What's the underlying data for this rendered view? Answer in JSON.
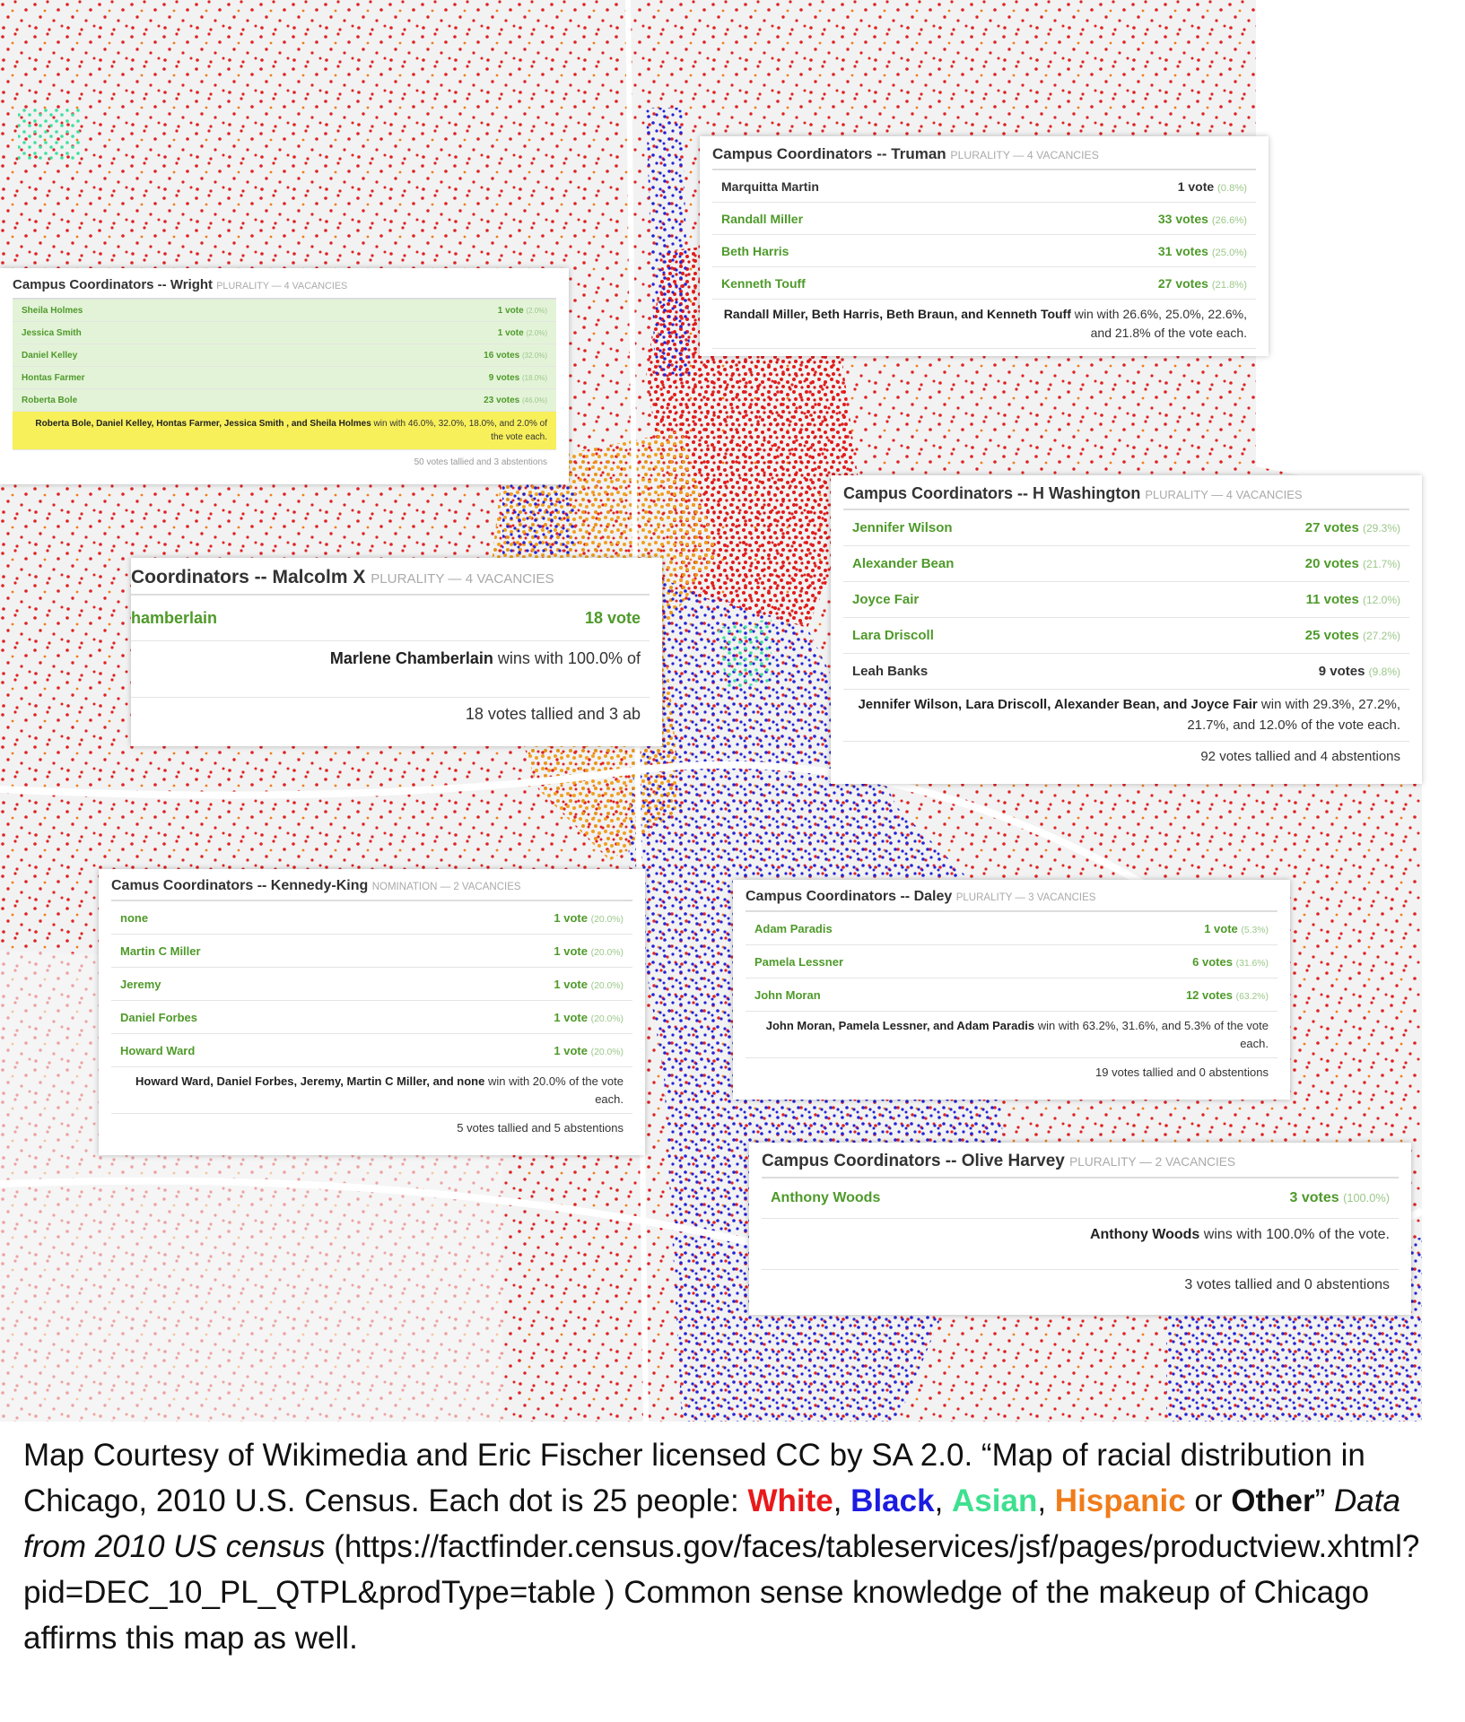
{
  "cards": [
    {
      "title": "Campus Coordinators -- Truman",
      "method": "PLURALITY — 4 VACANCIES",
      "rows": [
        {
          "name": "Marquitta Martin",
          "votes": "1 vote",
          "pct": "(0.8%)",
          "color": "#333333"
        },
        {
          "name": "Randall Miller",
          "votes": "33 votes",
          "pct": "(26.6%)",
          "color": "#4e9a2a"
        },
        {
          "name": "Beth Harris",
          "votes": "31 votes",
          "pct": "(25.0%)",
          "color": "#4e9a2a"
        },
        {
          "name": "Kenneth Touff",
          "votes": "27 votes",
          "pct": "(21.8%)",
          "color": "#4e9a2a"
        }
      ],
      "summary_names": "Randall Miller, Beth Harris, Beth Braun, and Kenneth Touff",
      "summary_text": " win with 26.6%, 25.0%, 22.6%, and 21.8% of the vote each."
    },
    {
      "title": "Campus Coordinators -- Wright",
      "method": "PLURALITY — 4 VACANCIES",
      "rows": [
        {
          "name": "Sheila Holmes",
          "votes": "1 vote",
          "pct": "(2.0%)",
          "color": "#4e9a2a"
        },
        {
          "name": "Jessica Smith",
          "votes": "1 vote",
          "pct": "(2.0%)",
          "color": "#4e9a2a"
        },
        {
          "name": "Daniel Kelley",
          "votes": "16 votes",
          "pct": "(32.0%)",
          "color": "#4e9a2a"
        },
        {
          "name": "Hontas Farmer",
          "votes": "9 votes",
          "pct": "(18.0%)",
          "color": "#4e9a2a"
        },
        {
          "name": "Roberta Bole",
          "votes": "23 votes",
          "pct": "(46.0%)",
          "color": "#4e9a2a"
        }
      ],
      "summary_names": "Roberta Bole, Daniel Kelley, Hontas Farmer, Jessica Smith , and Sheila Holmes",
      "summary_text": " win with 46.0%, 32.0%, 18.0%, and 2.0% of the vote each.",
      "tally": "50 votes tallied and 3 abstentions"
    },
    {
      "title": "Campus Coordinators -- H Washington",
      "method": "PLURALITY — 4 VACANCIES",
      "rows": [
        {
          "name": "Jennifer Wilson",
          "votes": "27 votes",
          "pct": "(29.3%)",
          "color": "#4e9a2a"
        },
        {
          "name": "Alexander Bean",
          "votes": "20 votes",
          "pct": "(21.7%)",
          "color": "#4e9a2a"
        },
        {
          "name": "Joyce Fair",
          "votes": "11 votes",
          "pct": "(12.0%)",
          "color": "#4e9a2a"
        },
        {
          "name": "Lara Driscoll",
          "votes": "25 votes",
          "pct": "(27.2%)",
          "color": "#4e9a2a"
        },
        {
          "name": "Leah Banks",
          "votes": "9 votes",
          "pct": "(9.8%)",
          "color": "#333333"
        }
      ],
      "summary_names": "Jennifer Wilson, Lara Driscoll, Alexander Bean, and Joyce Fair",
      "summary_text": " win with 29.3%, 27.2%, 21.7%, and 12.0% of the vote each.",
      "tally": "92 votes tallied and 4 abstentions"
    },
    {
      "title": "Coordinators -- Malcolm X",
      "method": "PLURALITY — 4 VACANCIES",
      "rows": [
        {
          "name": "hamberlain",
          "votes": "18 vote",
          "pct": "",
          "color": "#4e9a2a"
        }
      ],
      "summary_names": "Marlene Chamberlain",
      "summary_text": " wins with 100.0% of",
      "tally": "18 votes tallied and 3 ab"
    },
    {
      "title": "Camus Coordinators -- Kennedy-King",
      "method": "NOMINATION — 2 VACANCIES",
      "rows": [
        {
          "name": "none",
          "votes": "1 vote",
          "pct": "(20.0%)",
          "color": "#4e9a2a"
        },
        {
          "name": "Martin C Miller",
          "votes": "1 vote",
          "pct": "(20.0%)",
          "color": "#4e9a2a"
        },
        {
          "name": "Jeremy",
          "votes": "1 vote",
          "pct": "(20.0%)",
          "color": "#4e9a2a"
        },
        {
          "name": "Daniel Forbes",
          "votes": "1 vote",
          "pct": "(20.0%)",
          "color": "#4e9a2a"
        },
        {
          "name": "Howard Ward",
          "votes": "1 vote",
          "pct": "(20.0%)",
          "color": "#4e9a2a"
        }
      ],
      "summary_names": "Howard Ward, Daniel Forbes, Jeremy, Martin C Miller, and none",
      "summary_text": " win with 20.0% of the vote each.",
      "tally": "5 votes tallied and 5 abstentions"
    },
    {
      "title": "Campus Coordinators -- Daley",
      "method": "PLURALITY — 3 VACANCIES",
      "rows": [
        {
          "name": "Adam Paradis",
          "votes": "1 vote",
          "pct": "(5.3%)",
          "color": "#4e9a2a"
        },
        {
          "name": "Pamela Lessner",
          "votes": "6 votes",
          "pct": "(31.6%)",
          "color": "#4e9a2a"
        },
        {
          "name": "John Moran",
          "votes": "12 votes",
          "pct": "(63.2%)",
          "color": "#4e9a2a"
        }
      ],
      "summary_names": "John Moran, Pamela Lessner, and Adam Paradis",
      "summary_text": " win with 63.2%, 31.6%, and 5.3% of the vote each.",
      "tally": "19 votes tallied and 0 abstentions"
    },
    {
      "title": "Campus Coordinators -- Olive Harvey",
      "method": "PLURALITY — 2 VACANCIES",
      "rows": [
        {
          "name": "Anthony Woods",
          "votes": "3 votes",
          "pct": "(100.0%)",
          "color": "#4e9a2a"
        }
      ],
      "summary_names": "Anthony Woods",
      "summary_text": " wins with 100.0% of the vote.",
      "tally": "3 votes tallied and 0 abstentions"
    }
  ],
  "caption": {
    "segments": [
      {
        "text": "Map Courtesy of Wikimedia and Eric Fischer licensed CC by SA 2.0. “Map of racial distribution in Chicago, 2010 U.S. Census. Each dot is 25 people: "
      },
      {
        "text": "White",
        "color": "#e8191b",
        "bold": true
      },
      {
        "text": ", "
      },
      {
        "text": "Black",
        "color": "#1c1ce0",
        "bold": true
      },
      {
        "text": ", "
      },
      {
        "text": "Asian",
        "color": "#3ee08f",
        "bold": true
      },
      {
        "text": ", "
      },
      {
        "text": "Hispanic",
        "color": "#f07c1a",
        "bold": true
      },
      {
        "text": " or "
      },
      {
        "text": "Other",
        "bold": true
      },
      {
        "text": "”   "
      },
      {
        "text": "Data from 2010 US census",
        "italic": true
      },
      {
        "text": " (https://factfinder.census.gov/faces/tableservices/jsf/pages/productview.xhtml?pid=DEC_10_PL_QTPL&prodType=table )   Common sense knowledge of the makeup of Chicago affirms this map as well."
      }
    ]
  }
}
